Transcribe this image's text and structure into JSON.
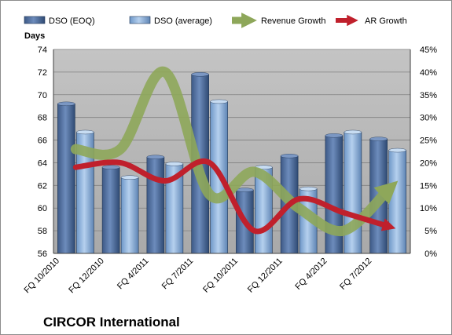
{
  "chart_data": {
    "type": "bar",
    "title": "",
    "brand_label": "CIRCOR International",
    "left_axis_label": "Days",
    "left_ylim": [
      56,
      74
    ],
    "left_ticks": [
      "56",
      "58",
      "60",
      "62",
      "64",
      "66",
      "68",
      "70",
      "72",
      "74"
    ],
    "right_ylim": [
      0,
      45
    ],
    "right_ticks": [
      "0%",
      "5%",
      "10%",
      "15%",
      "20%",
      "25%",
      "30%",
      "35%",
      "40%",
      "45%"
    ],
    "categories": [
      "FQ 10/2010",
      "FQ 12/2010",
      "FQ 4/2011",
      "FQ 7/2011",
      "FQ 10/2011",
      "FQ 12/2011",
      "FQ 4/2012",
      "FQ 7/2012"
    ],
    "grid": true,
    "legend_position": "top",
    "series": [
      {
        "name": "DSO (EOQ)",
        "kind": "bar",
        "axis": "left",
        "color": "#4f6fa0",
        "values": [
          69.2,
          63.6,
          64.5,
          71.8,
          61.6,
          64.6,
          66.4,
          66.1
        ]
      },
      {
        "name": "DSO (average)",
        "kind": "bar",
        "axis": "left",
        "color": "#8db4e2",
        "values": [
          66.7,
          62.7,
          63.9,
          69.4,
          63.6,
          61.7,
          66.7,
          65.1
        ]
      },
      {
        "name": "Revenue Growth",
        "kind": "line",
        "axis": "right",
        "unit": "%",
        "color": "#8ea75a",
        "values": [
          23,
          23,
          40,
          13,
          18,
          10,
          5,
          14
        ]
      },
      {
        "name": "AR Growth",
        "kind": "line",
        "axis": "right",
        "unit": "%",
        "color": "#c0202c",
        "values": [
          19,
          20,
          16,
          20,
          5,
          12,
          9,
          6
        ]
      }
    ]
  }
}
